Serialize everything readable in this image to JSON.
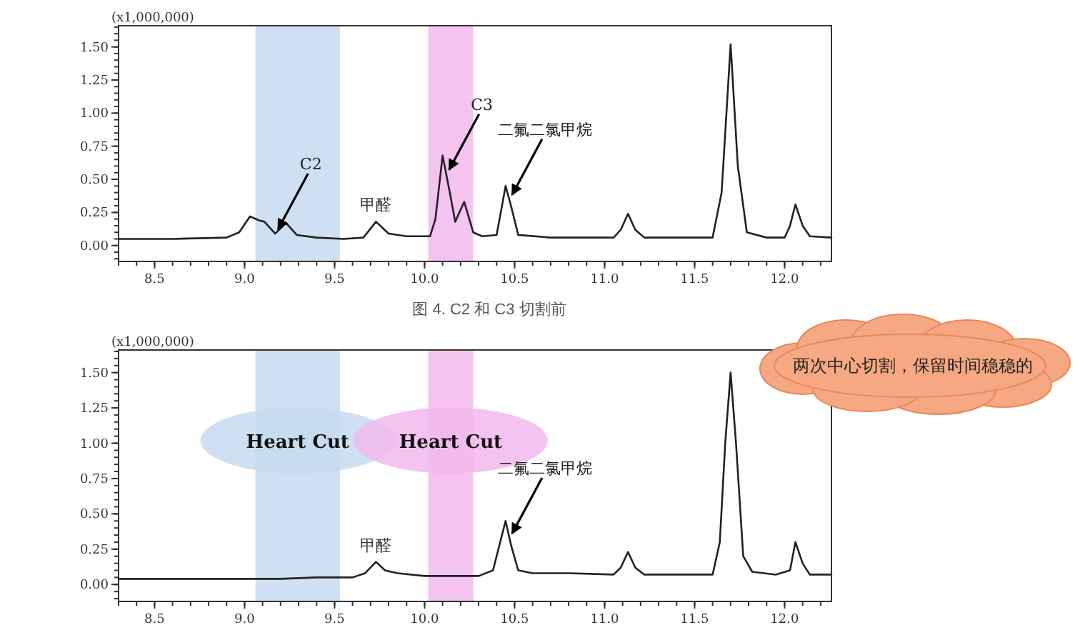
{
  "chart_data": [
    {
      "type": "line",
      "ylabel": "(x1,000,000)",
      "xlim": [
        8.3,
        12.26
      ],
      "ylim": [
        -0.12,
        1.66
      ],
      "xticks": [
        {
          "value": 8.5,
          "label": "8.5"
        },
        {
          "value": 9,
          "label": "9.0"
        },
        {
          "value": 9.5,
          "label": "9.5"
        },
        {
          "value": 10,
          "label": "10.0"
        },
        {
          "value": 10.5,
          "label": "10.5"
        },
        {
          "value": 11,
          "label": "11.0"
        },
        {
          "value": 11.5,
          "label": "11.5"
        },
        {
          "value": 12,
          "label": "12.0"
        }
      ],
      "yticks": [
        {
          "value": 0,
          "label": "0.00"
        },
        {
          "value": 0.25,
          "label": "0.25"
        },
        {
          "value": 0.5,
          "label": "0.50"
        },
        {
          "value": 0.75,
          "label": "0.75"
        },
        {
          "value": 1,
          "label": "1.00"
        },
        {
          "value": 1.25,
          "label": "1.25"
        },
        {
          "value": 1.5,
          "label": "1.50"
        }
      ],
      "series": [
        {
          "color": "#222222",
          "x": [
            8.3,
            8.6,
            8.9,
            8.97,
            9.03,
            9.08,
            9.11,
            9.17,
            9.23,
            9.29,
            9.4,
            9.55,
            9.66,
            9.73,
            9.8,
            9.9,
            10.03,
            10.06,
            10.1,
            10.14,
            10.17,
            10.22,
            10.27,
            10.32,
            10.4,
            10.43,
            10.45,
            10.48,
            10.52,
            10.7,
            11.05,
            11.09,
            11.13,
            11.17,
            11.22,
            11.6,
            11.65,
            11.7,
            11.74,
            11.79,
            11.9,
            12.0,
            12.03,
            12.06,
            12.1,
            12.14,
            12.26
          ],
          "values": [
            0.05,
            0.05,
            0.06,
            0.1,
            0.22,
            0.19,
            0.18,
            0.09,
            0.17,
            0.08,
            0.06,
            0.05,
            0.06,
            0.18,
            0.09,
            0.07,
            0.07,
            0.2,
            0.68,
            0.4,
            0.18,
            0.33,
            0.1,
            0.07,
            0.08,
            0.3,
            0.45,
            0.3,
            0.08,
            0.06,
            0.06,
            0.12,
            0.24,
            0.12,
            0.06,
            0.06,
            0.4,
            1.52,
            0.6,
            0.1,
            0.06,
            0.06,
            0.15,
            0.31,
            0.15,
            0.07,
            0.06
          ]
        }
      ],
      "bands": [
        {
          "axis": "x",
          "from": 9.06,
          "to": 9.53,
          "color": "#c5dbee"
        },
        {
          "axis": "x",
          "from": 10.02,
          "to": 10.27,
          "color": "#f2b8ec"
        }
      ],
      "annotations": [
        {
          "text": "C2",
          "x": 9.17,
          "y": 0.09
        },
        {
          "text": "C3",
          "x": 10.12,
          "y": 0.54
        },
        {
          "text": "甲醛",
          "x": 9.73,
          "y": 0.18
        },
        {
          "text": "二氟二氯甲烷",
          "x": 10.47,
          "y": 0.35
        },
        "图 4. C2 和 C3 切割前"
      ],
      "grid": false,
      "line_style": "solid"
    },
    {
      "type": "line",
      "ylabel": "(x1,000,000)",
      "xlim": [
        8.3,
        12.26
      ],
      "ylim": [
        -0.12,
        1.66
      ],
      "xticks": [
        {
          "value": 8.5,
          "label": "8.5"
        },
        {
          "value": 9,
          "label": "9.0"
        },
        {
          "value": 9.5,
          "label": "9.5"
        },
        {
          "value": 10,
          "label": "10.0"
        },
        {
          "value": 10.5,
          "label": "10.5"
        },
        {
          "value": 11,
          "label": "11.0"
        },
        {
          "value": 11.5,
          "label": "11.5"
        },
        {
          "value": 12,
          "label": "12.0"
        }
      ],
      "yticks": [
        {
          "value": 0,
          "label": "0.00"
        },
        {
          "value": 0.25,
          "label": "0.25"
        },
        {
          "value": 0.5,
          "label": "0.50"
        },
        {
          "value": 0.75,
          "label": "0.75"
        },
        {
          "value": 1,
          "label": "1.00"
        },
        {
          "value": 1.25,
          "label": "1.25"
        },
        {
          "value": 1.5,
          "label": "1.50"
        }
      ],
      "series": [
        {
          "color": "#222222",
          "x": [
            8.3,
            8.8,
            9.2,
            9.4,
            9.6,
            9.67,
            9.73,
            9.78,
            9.85,
            10.0,
            10.3,
            10.38,
            10.42,
            10.45,
            10.48,
            10.52,
            10.6,
            10.8,
            11.05,
            11.09,
            11.13,
            11.17,
            11.22,
            11.6,
            11.64,
            11.67,
            11.7,
            11.73,
            11.77,
            11.82,
            11.95,
            12.03,
            12.06,
            12.1,
            12.14,
            12.26
          ],
          "values": [
            0.04,
            0.04,
            0.04,
            0.05,
            0.05,
            0.08,
            0.16,
            0.1,
            0.08,
            0.06,
            0.06,
            0.1,
            0.3,
            0.45,
            0.28,
            0.1,
            0.08,
            0.08,
            0.07,
            0.12,
            0.23,
            0.12,
            0.07,
            0.07,
            0.3,
            1.0,
            1.5,
            1.0,
            0.2,
            0.09,
            0.07,
            0.1,
            0.3,
            0.15,
            0.07,
            0.07
          ]
        }
      ],
      "bands": [
        {
          "axis": "x",
          "from": 9.06,
          "to": 9.53,
          "color": "#c5dbee",
          "label": "Heart Cut"
        },
        {
          "axis": "x",
          "from": 10.02,
          "to": 10.27,
          "color": "#f2b8ec",
          "label": "Heart Cut"
        }
      ],
      "annotations": [
        {
          "text": "甲醛",
          "x": 9.73,
          "y": 0.16
        },
        {
          "text": "二氟二氯甲烷",
          "x": 10.47,
          "y": 0.33
        },
        "两次中心切割，保留时间稳稳的"
      ],
      "grid": false,
      "line_style": "solid"
    }
  ]
}
